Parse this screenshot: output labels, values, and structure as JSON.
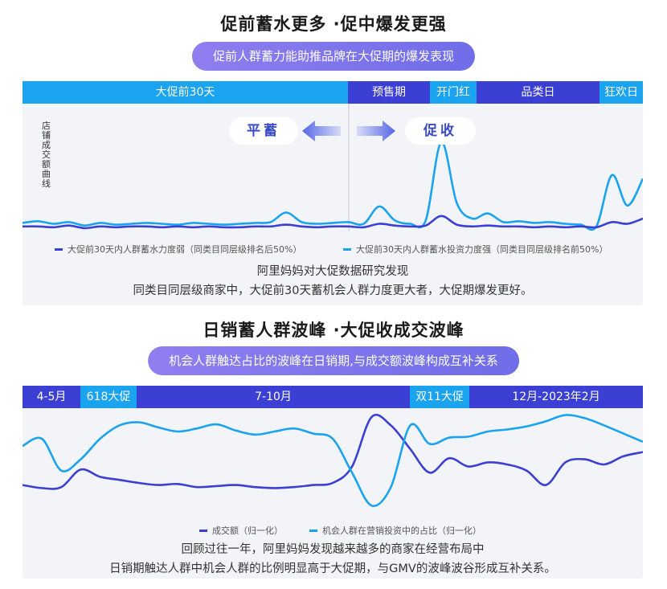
{
  "section1": {
    "title": "促前蓄水更多 ·促中爆发更强",
    "subtitle": "促前人群蓄力能助推品牌在大促期的爆发表现",
    "timeline": [
      {
        "label": "大促前30天",
        "color": "light"
      },
      {
        "label": "预售期",
        "color": "dark"
      },
      {
        "label": "开门红",
        "color": "light"
      },
      {
        "label": "品类日",
        "color": "dark"
      },
      {
        "label": "狂欢日",
        "color": "light"
      }
    ],
    "y_label": "店铺成交额曲线",
    "left_bubble": "平蓄",
    "right_bubble": "促收",
    "legend_weak": "大促前30天内人群蓄水力度弱（同类目同层级排名后50%）",
    "legend_strong": "大促前30天内人群蓄水投资力度强（同类目同层级排名前50%）",
    "note_line1": "阿里妈妈对大促数据研究发现",
    "note_line2": "同类目同层级商家中，大促前30天蓄机会人群力度更大者，大促期爆发更好。"
  },
  "section2": {
    "title": "日销蓄人群波峰 ·大促收成交波峰",
    "subtitle": "机会人群触达占比的波峰在日销期,与成交额波峰构成互补关系",
    "timeline": [
      {
        "label": "4-5月",
        "color": "dark"
      },
      {
        "label": "618大促",
        "color": "light"
      },
      {
        "label": "7-10月",
        "color": "dark"
      },
      {
        "label": "双11大促",
        "color": "light"
      },
      {
        "label": "12月-2023年2月",
        "color": "dark"
      }
    ],
    "legend_gmv": "成交额（归一化）",
    "legend_share": "机会人群在营销投资中的占比（归一化）",
    "note_line1": "回顾过往一年，阿里妈妈发现越来越多的商家在经营布局中",
    "note_line2": "日销期触达人群中机会人群的比例明显高于大促期，与GMV的波峰波谷形成互补关系。"
  },
  "colors": {
    "light_blue": "#1aa3ee",
    "dark_blue": "#3b3fd4",
    "purple": "#7a72ec"
  },
  "chart_data": [
    {
      "type": "line",
      "title": "",
      "ylabel": "店铺成交额曲线",
      "xlabel": "",
      "x": [
        0,
        1,
        2,
        3,
        4,
        5,
        6,
        7,
        8,
        9,
        10,
        11,
        12,
        13,
        14,
        15,
        16,
        17,
        18,
        19,
        20,
        21,
        22,
        23,
        24,
        25,
        26,
        27,
        28,
        29,
        30,
        31,
        32,
        33,
        34,
        35,
        36,
        37,
        38,
        39,
        40
      ],
      "series": [
        {
          "name": "大促前30天内人群蓄水投资力度强（同类目同层级排名前50%）",
          "color": "#1aa3ee",
          "values": [
            7,
            9,
            6,
            8,
            4,
            7,
            5,
            6,
            7,
            6,
            5,
            7,
            6,
            5,
            6,
            7,
            8,
            19,
            8,
            6,
            7,
            8,
            6,
            26,
            10,
            6,
            10,
            100,
            30,
            12,
            18,
            8,
            9,
            7,
            8,
            6,
            5,
            3,
            62,
            27,
            58
          ]
        },
        {
          "name": "大促前30天内人群蓄水力度弱（同类目同层级排名后50%）",
          "color": "#3b3fd4",
          "values": [
            3,
            3,
            2,
            4,
            1,
            3,
            2,
            3,
            3,
            2,
            3,
            2,
            3,
            2,
            2,
            3,
            3,
            5,
            3,
            2,
            3,
            3,
            2,
            6,
            4,
            3,
            4,
            15,
            5,
            3,
            4,
            3,
            3,
            2,
            3,
            2,
            3,
            2,
            8,
            6,
            12
          ]
        }
      ]
    },
    {
      "type": "line",
      "title": "",
      "xlabel": "",
      "ylabel": "",
      "x": [
        0,
        1,
        2,
        3,
        4,
        5,
        6,
        7,
        8,
        9,
        10,
        11,
        12,
        13,
        14,
        15,
        16,
        17,
        18,
        19,
        20,
        21,
        22,
        23,
        24,
        25,
        26,
        27,
        28,
        29,
        30,
        31,
        32
      ],
      "series": [
        {
          "name": "成交额（归一化）",
          "color": "#3b3fd4",
          "values": [
            30,
            27,
            28,
            45,
            38,
            35,
            32,
            30,
            31,
            28,
            29,
            30,
            28,
            27,
            28,
            30,
            32,
            48,
            96,
            88,
            65,
            42,
            56,
            48,
            52,
            50,
            44,
            30,
            52,
            55,
            50,
            58,
            62
          ]
        },
        {
          "name": "机会人群在营销投资中的占比（归一化）",
          "color": "#1aa3ee",
          "values": [
            68,
            75,
            44,
            55,
            75,
            88,
            91,
            86,
            82,
            85,
            89,
            83,
            79,
            82,
            85,
            80,
            75,
            42,
            10,
            28,
            88,
            70,
            76,
            77,
            82,
            84,
            87,
            92,
            98,
            95,
            88,
            80,
            72
          ]
        }
      ]
    }
  ]
}
